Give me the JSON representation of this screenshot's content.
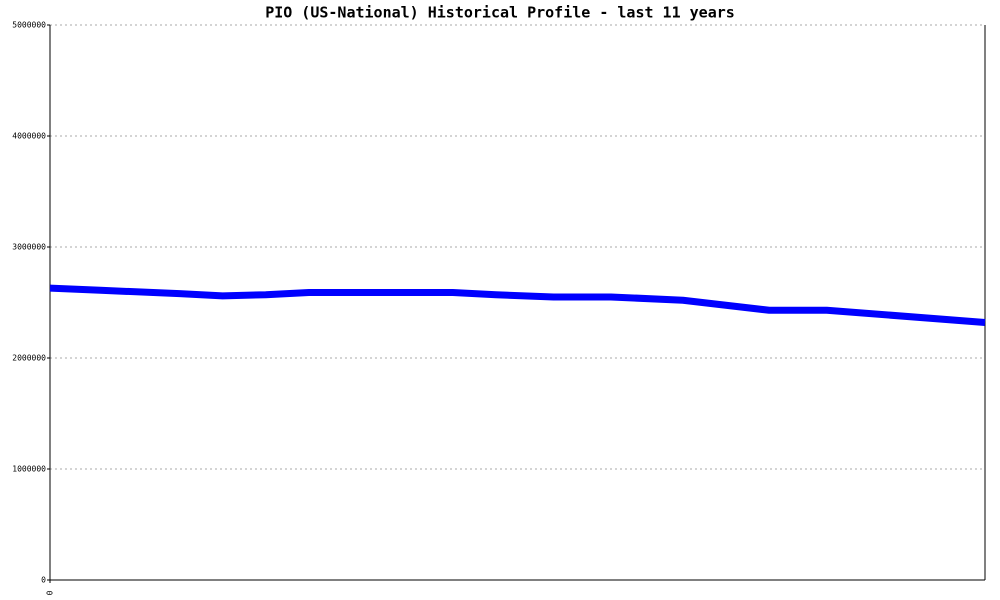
{
  "chart_data": {
    "type": "line",
    "title": "PIO (US-National) Historical Profile - last 11 years",
    "x": [
      0,
      7,
      18,
      24,
      30,
      36,
      56,
      62,
      70,
      78,
      88,
      100,
      108,
      130
    ],
    "series": [
      {
        "color": "#0000ff",
        "values": [
          2630000,
          2610000,
          2580000,
          2560000,
          2570000,
          2590000,
          2590000,
          2570000,
          2550000,
          2550000,
          2520000,
          2430000,
          2430000,
          2320000
        ]
      }
    ],
    "xlim": [
      0,
      130
    ],
    "xticks": [
      0
    ],
    "ylim": [
      0,
      5000000
    ],
    "yticks": [
      0,
      1000000,
      2000000,
      3000000,
      4000000,
      5000000
    ],
    "grid": true
  }
}
